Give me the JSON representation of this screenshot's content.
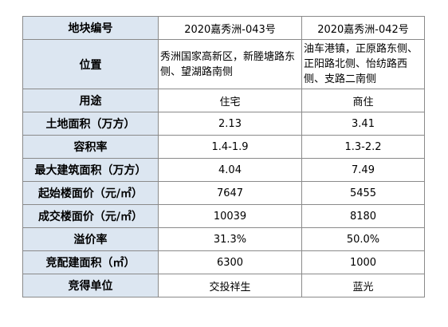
{
  "table": {
    "header": {
      "label": "地块编号",
      "col1": "2020嘉秀洲-043号",
      "col2": "2020嘉秀洲-042号"
    },
    "rows": [
      {
        "label": "位置",
        "col1": "秀洲国家高新区，新塍塘路东侧、望湖路南侧",
        "col2": "油车港镇，正原路东侧、正阳路北侧、怡纺路西侧、支路二南侧"
      },
      {
        "label": "用途",
        "col1": "住宅",
        "col2": "商住"
      },
      {
        "label": "土地面积（万方）",
        "col1": "2.13",
        "col2": "3.41"
      },
      {
        "label": "容积率",
        "col1": "1.4-1.9",
        "col2": "1.3-2.2"
      },
      {
        "label": "最大建筑面积（万方）",
        "col1": "4.04",
        "col2": "7.49"
      },
      {
        "label": "起始楼面价（元/㎡）",
        "col1": "7647",
        "col2": "5455"
      },
      {
        "label": "成交楼面价（元/㎡）",
        "col1": "10039",
        "col2": "8180"
      },
      {
        "label": "溢价率",
        "col1": "31.3%",
        "col2": "50.0%"
      },
      {
        "label": "竞配建面积（㎡）",
        "col1": "6300",
        "col2": "1000"
      },
      {
        "label": "竞得单位",
        "col1": "交投祥生",
        "col2": "蓝光"
      }
    ]
  }
}
